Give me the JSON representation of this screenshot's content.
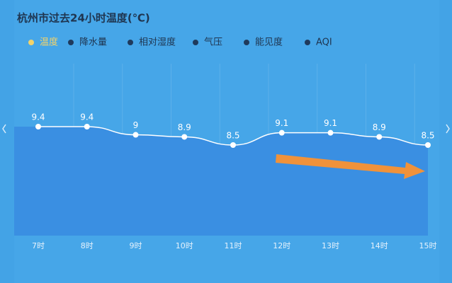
{
  "chart_data": {
    "type": "line",
    "title": "杭州市过去24小时温度(℃)",
    "tabs": [
      "温度",
      "降水量",
      "相对湿度",
      "气压",
      "能见度",
      "AQI"
    ],
    "categories": [
      "7时",
      "8时",
      "9时",
      "10时",
      "11时",
      "12时",
      "13时",
      "14时",
      "15时"
    ],
    "values": [
      9.4,
      9.4,
      9,
      8.9,
      8.5,
      9.1,
      9.1,
      8.9,
      8.5
    ],
    "color": "#ffffff"
  }
}
